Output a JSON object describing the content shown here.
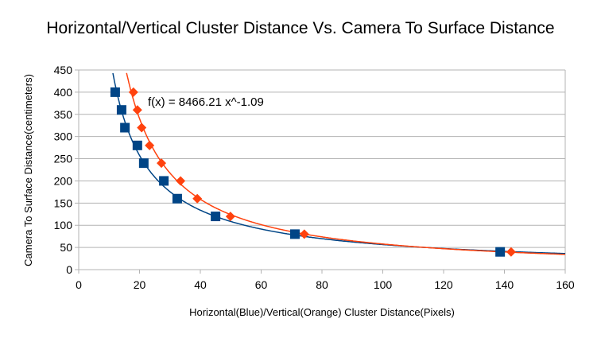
{
  "chart_data": {
    "type": "scatter",
    "title": "Horizontal/Vertical Cluster Distance Vs. Camera To Surface Distance",
    "xlabel": "Horizontal(Blue)/Vertical(Orange) Cluster Distance(Pixels)",
    "ylabel": "Camera To Surface Distance(centimeters)",
    "xlim": [
      0,
      160
    ],
    "ylim": [
      0,
      450
    ],
    "xticks": [
      0,
      20,
      40,
      60,
      80,
      100,
      120,
      140,
      160
    ],
    "yticks": [
      0,
      50,
      100,
      150,
      200,
      250,
      300,
      350,
      400,
      450
    ],
    "grid": "horizontal",
    "legend": "none",
    "series": [
      {
        "color": "#004586",
        "marker": "square",
        "trendline": "power",
        "x": [
          12.0,
          14.1,
          15.2,
          19.3,
          21.4,
          28.0,
          32.4,
          45.0,
          71.1,
          138.6
        ],
        "y": [
          400,
          360,
          320,
          280,
          240,
          200,
          160,
          120,
          80,
          40
        ]
      },
      {
        "color": "#ff420e",
        "marker": "diamond",
        "trendline": "power",
        "trendline_label": "f(x) = 8466.21 x^-1.09",
        "x": [
          18.0,
          19.3,
          20.7,
          23.3,
          27.2,
          33.5,
          39.0,
          49.9,
          74.2,
          142.2
        ],
        "y": [
          400,
          360,
          320,
          280,
          240,
          200,
          160,
          120,
          80,
          40
        ]
      }
    ]
  }
}
